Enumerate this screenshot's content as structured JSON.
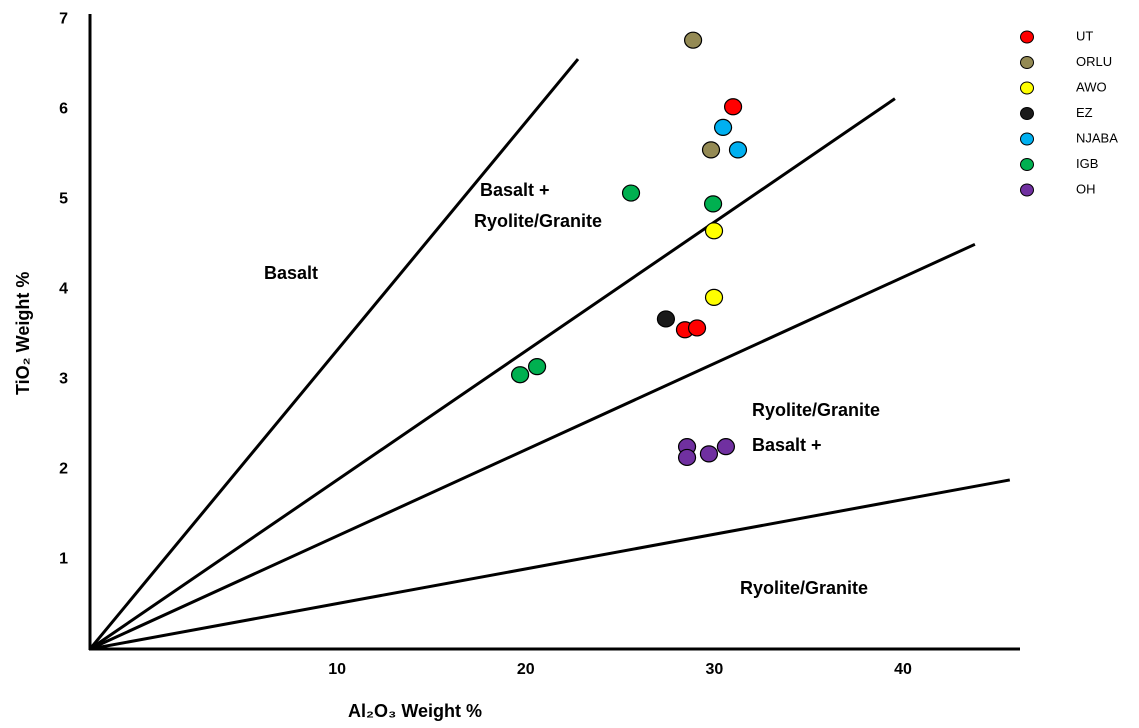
{
  "chart_data": {
    "type": "scatter",
    "x_label": "Al₂O₃  Weight %",
    "y_label": "TiO₂ Weight %",
    "xlim": [
      -3.1,
      46.2
    ],
    "ylim": [
      0,
      7.05
    ],
    "xticks": [
      10,
      20,
      30,
      40
    ],
    "yticks": [
      1,
      2,
      3,
      4,
      5,
      6,
      7
    ],
    "grid": false,
    "boundaries": [
      {
        "x": [
          -3.1,
          22.77
        ],
        "y": [
          0,
          6.56
        ]
      },
      {
        "x": [
          -3.1,
          39.57
        ],
        "y": [
          0,
          6.12
        ]
      },
      {
        "x": [
          -3.1,
          43.81
        ],
        "y": [
          0,
          4.5
        ]
      },
      {
        "x": [
          -3.1,
          45.66
        ],
        "y": [
          0,
          1.88
        ]
      }
    ],
    "annotations": [
      "Basalt",
      "Basalt +",
      "Ryolite/Granite",
      "Ryolite/Granite",
      "Basalt +",
      "Ryolite/Granite"
    ],
    "legend": "top-right",
    "series": [
      {
        "name": "UT",
        "color": "#ff0000",
        "x": [
          30.99,
          28.44,
          29.08
        ],
        "values": [
          6.03,
          3.55,
          3.57
        ]
      },
      {
        "name": "ORLU",
        "color": "#948a54",
        "x": [
          28.87,
          29.82
        ],
        "values": [
          6.77,
          5.55
        ]
      },
      {
        "name": "AWO",
        "color": "#ffff00",
        "x": [
          29.98,
          29.98
        ],
        "values": [
          4.65,
          3.91
        ]
      },
      {
        "name": "EZ",
        "color": "#1a1a1a",
        "x": [
          27.43
        ],
        "values": [
          3.67
        ]
      },
      {
        "name": "NJABA",
        "color": "#00b0f0",
        "x": [
          30.46,
          31.25
        ],
        "values": [
          5.8,
          5.55
        ]
      },
      {
        "name": "IGB",
        "color": "#00b050",
        "x": [
          25.58,
          29.93,
          19.7,
          20.6
        ],
        "values": [
          5.07,
          4.95,
          3.05,
          3.14
        ]
      },
      {
        "name": "OH",
        "color": "#7030a0",
        "x": [
          28.55,
          28.55,
          29.71,
          30.61
        ],
        "values": [
          2.25,
          2.13,
          2.17,
          2.25
        ]
      }
    ]
  }
}
